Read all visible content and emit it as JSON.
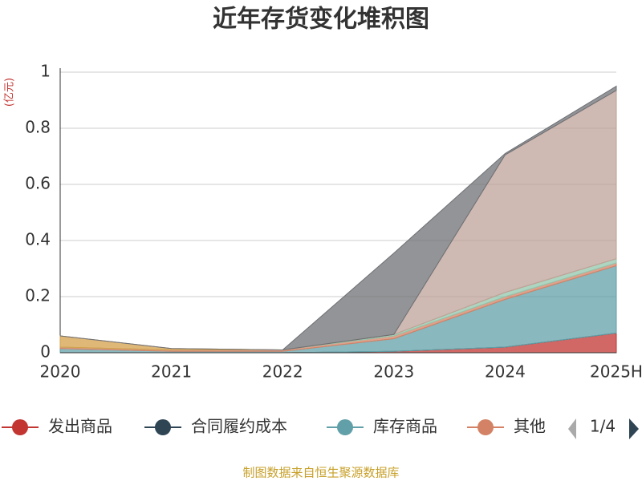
{
  "chart_data": {
    "type": "stacked-area",
    "title": "近年存货变化堆积图",
    "y_unit": "(亿元)",
    "categories": [
      "2020",
      "2021",
      "2022",
      "2023",
      "2024",
      "2025H"
    ],
    "series": [
      {
        "name": "发出商品",
        "color": "#c23531",
        "values": [
          0,
          0,
          0,
          0.005,
          0.02,
          0.07
        ]
      },
      {
        "name": "合同履约成本",
        "color": "#2f4554",
        "values": [
          0,
          0,
          0,
          0,
          0,
          0
        ]
      },
      {
        "name": "库存商品",
        "color": "#61a0a8",
        "values": [
          0.015,
          0.005,
          0.005,
          0.045,
          0.17,
          0.24
        ]
      },
      {
        "name": "其他",
        "color": "#d48265",
        "values": [
          0.005,
          0.005,
          0.005,
          0.01,
          0.01,
          0.01
        ]
      },
      {
        "color": "#91c7ae",
        "values": [
          0,
          0,
          0,
          0.005,
          0.015,
          0.015
        ]
      },
      {
        "color": "#d4a04a",
        "values": [
          0.04,
          0.005,
          0,
          0,
          0,
          0
        ]
      },
      {
        "color": "#bda29a",
        "values": [
          0,
          0,
          0,
          0,
          0.49,
          0.6
        ]
      },
      {
        "color": "#6e7074",
        "values": [
          0,
          0,
          0,
          0.29,
          0.005,
          0.015
        ]
      }
    ],
    "ylim": [
      0,
      1
    ],
    "yticks": [
      0,
      0.2,
      0.4,
      0.6,
      0.8,
      1
    ],
    "grid": true,
    "legend_position": "bottom",
    "legend_page": "1/4",
    "source": "制图数据来自恒生聚源数据库"
  }
}
